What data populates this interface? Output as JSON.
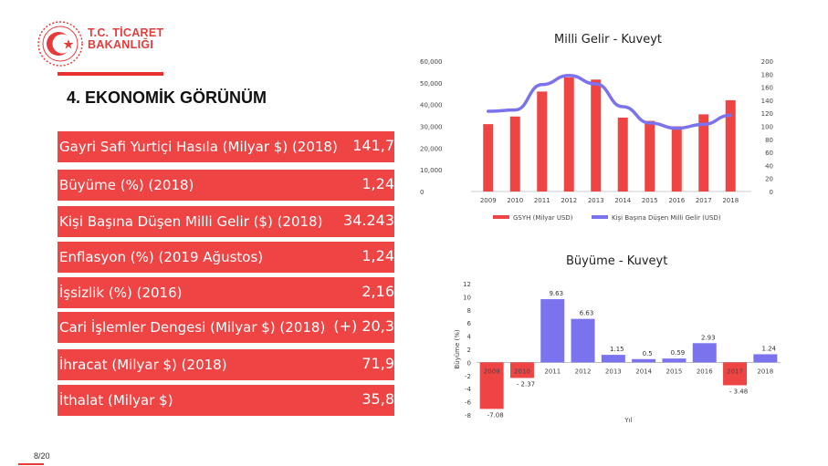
{
  "brand": {
    "line1": "T.C. TİCARET",
    "line2": "BAKANLIĞI"
  },
  "section_title": "4. EKONOMİK GÖRÜNÜM",
  "indicators": [
    {
      "label": "Gayri Safi Yurtiçi Hasıla (Milyar $) (2018)",
      "value": "141,7"
    },
    {
      "label": "Büyüme (%) (2018)",
      "value": "1,24"
    },
    {
      "label": "Kişi Başına Düşen Milli Gelir ($) (2018)",
      "value": "34.243"
    },
    {
      "label": "Enflasyon (%) (2019 Ağustos)",
      "value": "1,24"
    },
    {
      "label": "İşsizlik (%) (2016)",
      "value": "2,16"
    },
    {
      "label": "Cari İşlemler Dengesi (Milyar $) (2018)",
      "value": "(+) 20,3"
    },
    {
      "label": "İhracat (Milyar $) (2018)",
      "value": "71,9"
    },
    {
      "label": "İthalat (Milyar $)",
      "value": "35,8"
    }
  ],
  "page_number": "8/20",
  "colors": {
    "brand_red": "#e63b3b",
    "bar_red": "#ef4444",
    "series_blue": "#7b72ee"
  },
  "chart_data": [
    {
      "type": "bar",
      "title": "Milli Gelir - Kuveyt",
      "categories": [
        "2009",
        "2010",
        "2011",
        "2012",
        "2013",
        "2014",
        "2015",
        "2016",
        "2017",
        "2018"
      ],
      "series": [
        {
          "name": "GSYH (Milyar USD)",
          "type": "bar",
          "axis": "left",
          "color": "#ef4444",
          "values": [
            31,
            34.5,
            46,
            52.5,
            51.5,
            34,
            32.5,
            30,
            35.5,
            42
          ]
        },
        {
          "name": "Kişi Başına Düşen Milli Gelir (USD)",
          "type": "line",
          "axis": "right",
          "color": "#7b72ee",
          "values": [
            123,
            125,
            164,
            178,
            165,
            130,
            105,
            97,
            103,
            117
          ]
        }
      ],
      "y_left": {
        "ticks": [
          "0",
          "10,000",
          "20,000",
          "30,000",
          "40,000",
          "50,000",
          "60,000"
        ],
        "max": 60000
      },
      "y_right": {
        "ticks": [
          "0",
          "20",
          "40",
          "60",
          "80",
          "100",
          "120",
          "140",
          "160",
          "180",
          "200"
        ],
        "max": 200
      },
      "legend_position": "bottom",
      "grid": false
    },
    {
      "type": "bar",
      "title": "Büyüme - Kuveyt",
      "xlabel": "Yıl",
      "ylabel": "Büyüme (%)",
      "categories": [
        "2009",
        "2010",
        "2011",
        "2012",
        "2013",
        "2014",
        "2015",
        "2016",
        "2017",
        "2018"
      ],
      "values": [
        -7.08,
        -2.37,
        9.63,
        6.63,
        1.15,
        0.5,
        0.59,
        2.93,
        -3.48,
        1.24
      ],
      "labels": [
        "-7.08",
        "- 2.37",
        "9.63",
        "6.63",
        "1.15",
        "0.5",
        "0.59",
        "2.93",
        "- 3.48",
        "1.24"
      ],
      "colors": [
        "#ef4444",
        "#ef4444",
        "#7b72ee",
        "#7b72ee",
        "#7b72ee",
        "#7b72ee",
        "#7b72ee",
        "#7b72ee",
        "#ef4444",
        "#7b72ee"
      ],
      "yticks": [
        "12",
        "10",
        "8",
        "6",
        "4",
        "2",
        "0",
        "-2",
        "-4",
        "-6",
        "-8"
      ],
      "ylim": [
        -8,
        12
      ],
      "grid": false
    }
  ]
}
